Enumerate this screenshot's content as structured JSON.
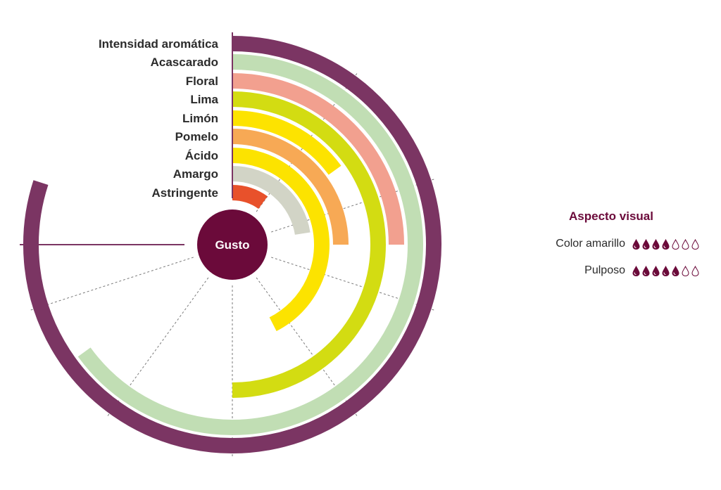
{
  "chart_data": {
    "type": "radial-bar",
    "scale_max": 10,
    "center_label": "Gusto",
    "categories": [
      "Intensidad aromática",
      "Acascarado",
      "Floral",
      "Lima",
      "Limón",
      "Pomelo",
      "Ácido",
      "Amargo",
      "Astringente"
    ],
    "values": [
      8,
      6.5,
      2.5,
      5,
      1.5,
      2.5,
      4.25,
      2.25,
      1
    ],
    "colors": [
      "#7b3563",
      "#c1deb4",
      "#f2a08f",
      "#d3dc12",
      "#fde300",
      "#f7a955",
      "#fce300",
      "#d2d4c6",
      "#e8512b"
    ]
  },
  "aspecto_visual": {
    "title": "Aspecto visual",
    "items": [
      {
        "label": "Color amarillo",
        "value": 4,
        "max": 7
      },
      {
        "label": "Pulposo",
        "value": 5,
        "max": 7
      }
    ],
    "drop_color": "#6b0a3a"
  }
}
